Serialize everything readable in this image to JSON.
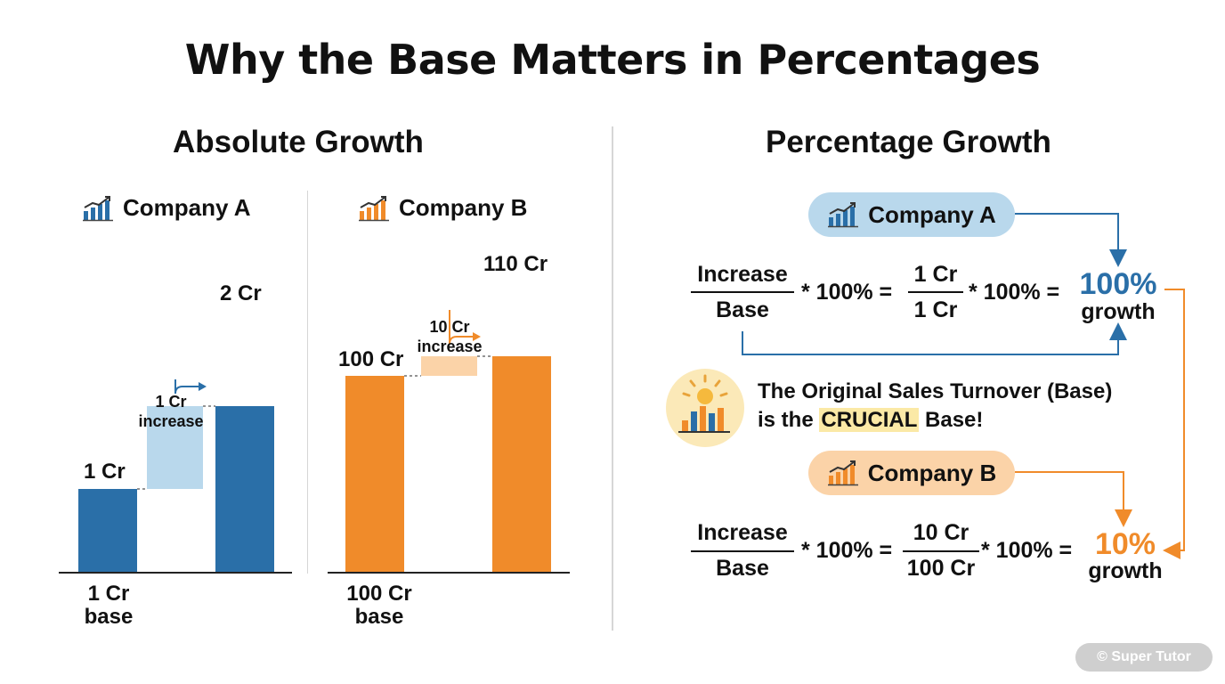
{
  "title": "Why the Base Matters in Percentages",
  "absolute": {
    "heading": "Absolute Growth",
    "company_a": {
      "name": "Company A",
      "base_value": "1 Cr",
      "new_value": "2 Cr",
      "increase_label": "1 Cr\nincrease",
      "base_caption": "1 Cr\nbase",
      "values": {
        "base": 1,
        "increase": 1,
        "new": 2
      },
      "color": "#2a6fa8"
    },
    "company_b": {
      "name": "Company B",
      "base_value": "100 Cr",
      "new_value": "110 Cr",
      "increase_label": "10 Cr\nincrease",
      "base_caption": "100 Cr\nbase",
      "values": {
        "base": 100,
        "increase": 10,
        "new": 110
      },
      "color": "#f08b2a"
    }
  },
  "percentage": {
    "heading": "Percentage Growth",
    "company_a": {
      "name": "Company A",
      "numerator_word": "Increase",
      "denominator_word": "Base",
      "times": "* 100% =",
      "num_value": "1 Cr",
      "den_value": "1 Cr",
      "times2": "* 100% =",
      "result": "100%",
      "result_word": "growth",
      "color": "#2a6fa8"
    },
    "note": {
      "line1": "The Original Sales Turnover (Base)",
      "line2_prefix": "is the ",
      "line2_highlight": "CRUCIAL",
      "line2_suffix": " Base!"
    },
    "company_b": {
      "name": "Company B",
      "numerator_word": "Increase",
      "denominator_word": "Base",
      "times": "* 100% =",
      "num_value": "10 Cr",
      "den_value": "100 Cr",
      "times2": "* 100% =",
      "result": "10%",
      "result_word": "growth",
      "color": "#f08b2a"
    }
  },
  "watermark": "© Super Tutor"
}
